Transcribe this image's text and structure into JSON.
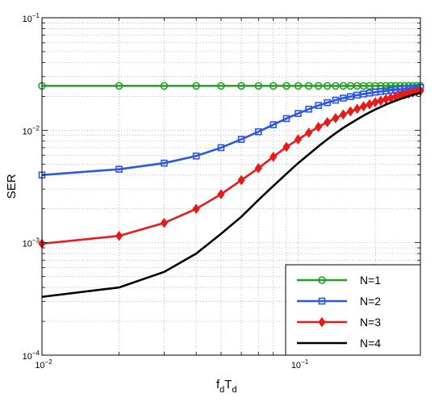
{
  "chart_data": {
    "type": "line",
    "xscale": "log",
    "yscale": "log",
    "xlim": [
      0.01,
      0.3
    ],
    "ylim": [
      0.0001,
      0.1
    ],
    "grid": true,
    "legend_placement": "bottom-right",
    "xlabel": {
      "main": "f",
      "sub1": "d",
      "mid": "T",
      "sub2": "d"
    },
    "ylabel": "SER",
    "x_ticks": [
      {
        "value": 0.01,
        "base": "10",
        "exp": "−2"
      },
      {
        "value": 0.1,
        "base": "10",
        "exp": "−1"
      }
    ],
    "y_ticks": [
      {
        "value": 0.1,
        "base": "10",
        "exp": "−1"
      },
      {
        "value": 0.01,
        "base": "10",
        "exp": "−2"
      },
      {
        "value": 0.001,
        "base": "10",
        "exp": "−3"
      },
      {
        "value": 0.0001,
        "base": "10",
        "exp": "−4"
      }
    ],
    "x": [
      0.01,
      0.02,
      0.03,
      0.04,
      0.05,
      0.06,
      0.07,
      0.08,
      0.09,
      0.1,
      0.11,
      0.12,
      0.13,
      0.14,
      0.15,
      0.16,
      0.17,
      0.18,
      0.19,
      0.2,
      0.21,
      0.22,
      0.23,
      0.24,
      0.25,
      0.26,
      0.27,
      0.28,
      0.29,
      0.3
    ],
    "series": [
      {
        "name": "N=1",
        "color": "#1fa21f",
        "marker": "circle",
        "values": [
          0.0248,
          0.0248,
          0.0248,
          0.0248,
          0.0248,
          0.0248,
          0.0248,
          0.0248,
          0.0248,
          0.0248,
          0.0248,
          0.0248,
          0.0248,
          0.0248,
          0.0248,
          0.0248,
          0.0248,
          0.0248,
          0.0248,
          0.0248,
          0.0248,
          0.0248,
          0.0248,
          0.0248,
          0.0248,
          0.0248,
          0.0248,
          0.0248,
          0.0248,
          0.0248
        ]
      },
      {
        "name": "N=2",
        "color": "#2b57e8",
        "marker": "square",
        "values": [
          0.004,
          0.0045,
          0.0051,
          0.0059,
          0.007,
          0.0083,
          0.0097,
          0.0112,
          0.0127,
          0.0141,
          0.0154,
          0.0166,
          0.0176,
          0.0185,
          0.0193,
          0.0199,
          0.0205,
          0.021,
          0.0214,
          0.0218,
          0.0221,
          0.0224,
          0.0227,
          0.0229,
          0.0231,
          0.0233,
          0.0235,
          0.0237,
          0.0238,
          0.024
        ]
      },
      {
        "name": "N=3",
        "color": "#e81a1a",
        "marker": "diamond",
        "values": [
          0.00098,
          0.00115,
          0.0015,
          0.002,
          0.0027,
          0.0036,
          0.0046,
          0.0058,
          0.0071,
          0.0083,
          0.0095,
          0.0107,
          0.0118,
          0.0128,
          0.0138,
          0.0147,
          0.0155,
          0.0163,
          0.017,
          0.0177,
          0.0183,
          0.0189,
          0.0194,
          0.0199,
          0.0204,
          0.0208,
          0.0212,
          0.0216,
          0.022,
          0.0223
        ]
      },
      {
        "name": "N=4",
        "color": "#000000",
        "marker": "none",
        "values": [
          0.00033,
          0.0004,
          0.00055,
          0.0008,
          0.0012,
          0.0017,
          0.0024,
          0.0032,
          0.0041,
          0.0051,
          0.0061,
          0.0072,
          0.0083,
          0.0094,
          0.0105,
          0.0115,
          0.0125,
          0.0135,
          0.0144,
          0.0153,
          0.0161,
          0.0169,
          0.0176,
          0.0183,
          0.0189,
          0.0195,
          0.0201,
          0.0206,
          0.0211,
          0.0216
        ]
      }
    ]
  }
}
